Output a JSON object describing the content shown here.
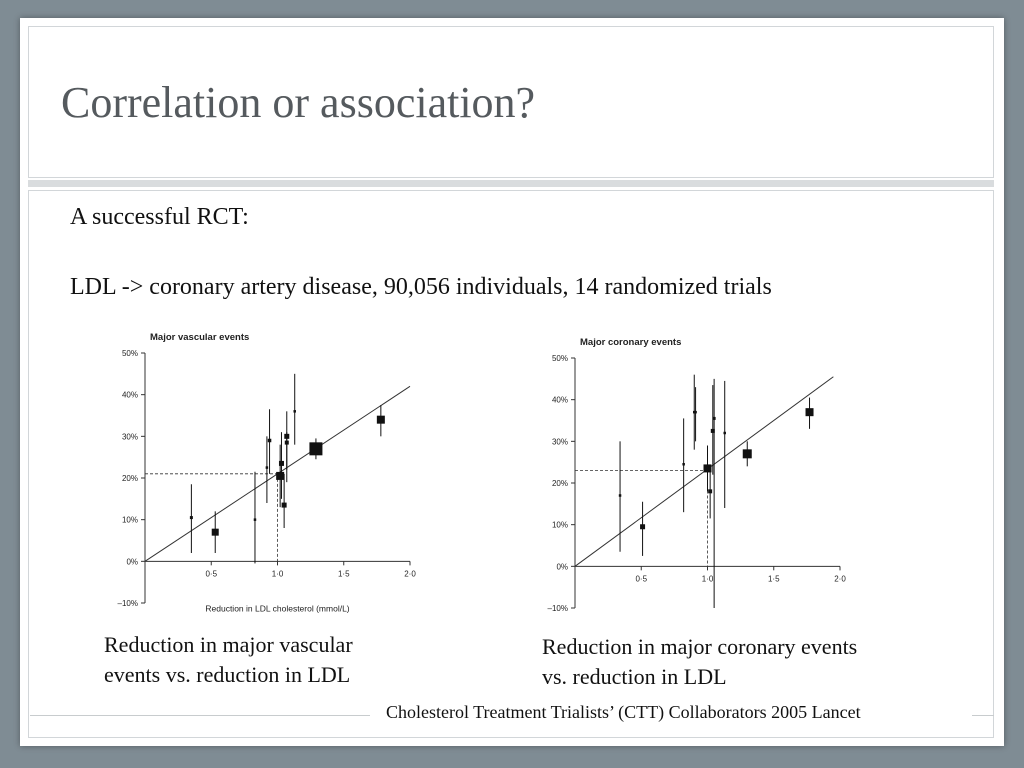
{
  "slide": {
    "title": "Correlation or association?",
    "intro_line": "A successful RCT:",
    "summary_line": "LDL -> coronary artery disease, 90,056 individuals, 14 randomized trials",
    "left_caption_line1": "Reduction in major vascular",
    "left_caption_line2": "events vs. reduction in LDL",
    "right_caption_line1": "Reduction in major coronary events",
    "right_caption_line2": "vs. reduction in LDL",
    "citation": "Cholesterol Treatment Trialists’ (CTT) Collaborators 2005 Lancet"
  },
  "colors": {
    "marker": "#111111",
    "axis": "#333333",
    "line": "#333333",
    "dash": "#333333"
  },
  "chart_data": [
    {
      "type": "scatter",
      "title": "Major vascular events",
      "xlabel": "Reduction in LDL cholesterol (mmol/L)",
      "ylabel": "",
      "xlim": [
        0,
        2.0
      ],
      "ylim": [
        -10,
        50
      ],
      "x_ticks": [
        0.5,
        1.0,
        1.5,
        2.0
      ],
      "x_tick_labels": [
        "0·5",
        "1·0",
        "1·5",
        "2·0"
      ],
      "y_ticks": [
        -10,
        0,
        10,
        20,
        30,
        40,
        50
      ],
      "y_tick_labels": [
        "–10%",
        "0%",
        "10%",
        "20%",
        "30%",
        "40%",
        "50%"
      ],
      "regression_line": {
        "x": [
          0,
          2.0
        ],
        "y": [
          0,
          42
        ]
      },
      "reference": {
        "x": 1.0,
        "y": 21
      },
      "points": [
        {
          "x": 0.35,
          "y": 10.5,
          "lo": 2,
          "hi": 18.5,
          "size": 3
        },
        {
          "x": 0.53,
          "y": 7,
          "lo": 2,
          "hi": 12,
          "size": 7
        },
        {
          "x": 0.83,
          "y": 10,
          "lo": -0.5,
          "hi": 21.5,
          "size": 2.5
        },
        {
          "x": 0.92,
          "y": 22.5,
          "lo": 14,
          "hi": 30,
          "size": 2.5
        },
        {
          "x": 0.94,
          "y": 29,
          "lo": 21,
          "hi": 36.5,
          "size": 3.5
        },
        {
          "x": 1.02,
          "y": 20.5,
          "lo": 13,
          "hi": 28,
          "size": 8
        },
        {
          "x": 1.03,
          "y": 23.5,
          "lo": 15,
          "hi": 31,
          "size": 5
        },
        {
          "x": 1.05,
          "y": 13.5,
          "lo": 8,
          "hi": 21,
          "size": 5
        },
        {
          "x": 1.07,
          "y": 30,
          "lo": 19,
          "hi": 36,
          "size": 5
        },
        {
          "x": 1.07,
          "y": 28.5,
          "lo": 22,
          "hi": 31,
          "size": 4
        },
        {
          "x": 1.13,
          "y": 36,
          "lo": 28,
          "hi": 45,
          "size": 2.5
        },
        {
          "x": 1.29,
          "y": 27,
          "lo": 24.5,
          "hi": 29.5,
          "size": 13
        },
        {
          "x": 1.78,
          "y": 34,
          "lo": 30,
          "hi": 37.5,
          "size": 8
        }
      ]
    },
    {
      "type": "scatter",
      "title": "Major coronary events",
      "xlabel": "",
      "ylabel": "",
      "xlim": [
        0,
        2.0
      ],
      "ylim": [
        -10,
        50
      ],
      "x_ticks": [
        0.5,
        1.0,
        1.5,
        2.0
      ],
      "x_tick_labels": [
        "0·5",
        "1·0",
        "1·5",
        "2·0"
      ],
      "y_ticks": [
        -10,
        0,
        10,
        20,
        30,
        40,
        50
      ],
      "y_tick_labels": [
        "–10%",
        "0%",
        "10%",
        "20%",
        "30%",
        "40%",
        "50%"
      ],
      "regression_line": {
        "x": [
          0,
          1.95
        ],
        "y": [
          0,
          45.5
        ]
      },
      "reference": {
        "x": 1.0,
        "y": 23
      },
      "points": [
        {
          "x": 0.34,
          "y": 17,
          "lo": 3.5,
          "hi": 30,
          "size": 2.5
        },
        {
          "x": 0.51,
          "y": 9.5,
          "lo": 2.5,
          "hi": 15.5,
          "size": 5
        },
        {
          "x": 0.82,
          "y": 24.5,
          "lo": 13,
          "hi": 35.5,
          "size": 2.5
        },
        {
          "x": 0.9,
          "y": 37,
          "lo": 28,
          "hi": 46,
          "size": 2.5
        },
        {
          "x": 0.91,
          "y": 37,
          "lo": 30,
          "hi": 43,
          "size": 2.5
        },
        {
          "x": 1.0,
          "y": 23.5,
          "lo": 18,
          "hi": 29,
          "size": 8
        },
        {
          "x": 1.02,
          "y": 18,
          "lo": 11.5,
          "hi": 23,
          "size": 4
        },
        {
          "x": 1.04,
          "y": 32.5,
          "lo": 22,
          "hi": 43.5,
          "size": 4
        },
        {
          "x": 1.05,
          "y": 35.5,
          "lo": -10,
          "hi": 45,
          "size": 3
        },
        {
          "x": 1.13,
          "y": 32,
          "lo": 14,
          "hi": 44.5,
          "size": 2.5
        },
        {
          "x": 1.3,
          "y": 27,
          "lo": 24,
          "hi": 30,
          "size": 9
        },
        {
          "x": 1.77,
          "y": 37,
          "lo": 33,
          "hi": 40.5,
          "size": 8
        }
      ]
    }
  ]
}
